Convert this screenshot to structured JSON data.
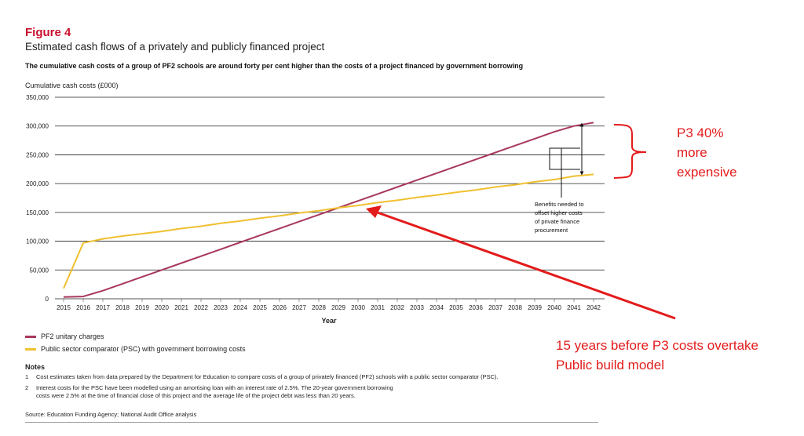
{
  "figure": {
    "label": "Figure 4",
    "title": "Estimated cash flows of a privately and publicly financed project",
    "subtitle": "The cumulative cash costs of a group of PF2 schools are around forty per cent higher than the costs of a project financed by government borrowing"
  },
  "chart_data": {
    "type": "line",
    "title": "Estimated cash flows of a privately and publicly financed project",
    "ylabel": "Cumulative cash costs (£000)",
    "xlabel": "Year",
    "ylim": [
      0,
      350000
    ],
    "yticks": [
      "0",
      "50,000",
      "100,000",
      "150,000",
      "200,000",
      "250,000",
      "300,000",
      "350,000"
    ],
    "x": [
      "2015",
      "2016",
      "2017",
      "2018",
      "2019",
      "2020",
      "2021",
      "2022",
      "2023",
      "2024",
      "2025",
      "2026",
      "2027",
      "2028",
      "2029",
      "2030",
      "2031",
      "2032",
      "2033",
      "2034",
      "2035",
      "2036",
      "2037",
      "2038",
      "2039",
      "2040",
      "2041",
      "2042"
    ],
    "grid": "horizontal",
    "legend": "bottom",
    "series": [
      {
        "name": "PF2 unitary charges",
        "color": "#a8385a",
        "values": [
          3000,
          4000,
          14000,
          26000,
          38000,
          50000,
          62000,
          74000,
          86000,
          98000,
          110000,
          122000,
          134000,
          146000,
          158000,
          170000,
          182000,
          194000,
          206000,
          218000,
          230000,
          242000,
          254000,
          266000,
          278000,
          290000,
          300000,
          306000
        ]
      },
      {
        "name": "Public sector comparator (PSC) with government borrowing costs",
        "color": "#f0c030",
        "values": [
          18000,
          97000,
          104000,
          109000,
          113000,
          117000,
          122000,
          126000,
          131000,
          135000,
          140000,
          144000,
          149000,
          153000,
          158000,
          162000,
          167000,
          171000,
          176000,
          180000,
          185000,
          189000,
          194000,
          198000,
          203000,
          207000,
          213000,
          216000
        ]
      }
    ],
    "annotations": {
      "benefits": [
        "Benefits needed to",
        "offset higher costs",
        "of private finance",
        "procurement"
      ]
    }
  },
  "notes": {
    "title": "Notes",
    "items": [
      {
        "num": "1",
        "text": "Cost estimates taken from data prepared by the Department for Education to compare costs of a group of privately financed (PF2) schools with a public sector comparator (PSC)."
      },
      {
        "num": "2",
        "text": "Interest costs for the PSC have been modelled using an amortising loan with an interest rate of 2.5%. The 20-year government borrowing costs were 2.5% at the time of financial close of this project and the average life of the project debt was less than 20 years."
      }
    ]
  },
  "source": "Source: Education Funding Agency; National Audit Office analysis",
  "overlay": {
    "p3_text": [
      "P3 40%",
      "more",
      "expensive"
    ],
    "years_text": [
      "15 years before P3 costs overtake",
      "Public build model"
    ],
    "color": "#e31b1b"
  }
}
